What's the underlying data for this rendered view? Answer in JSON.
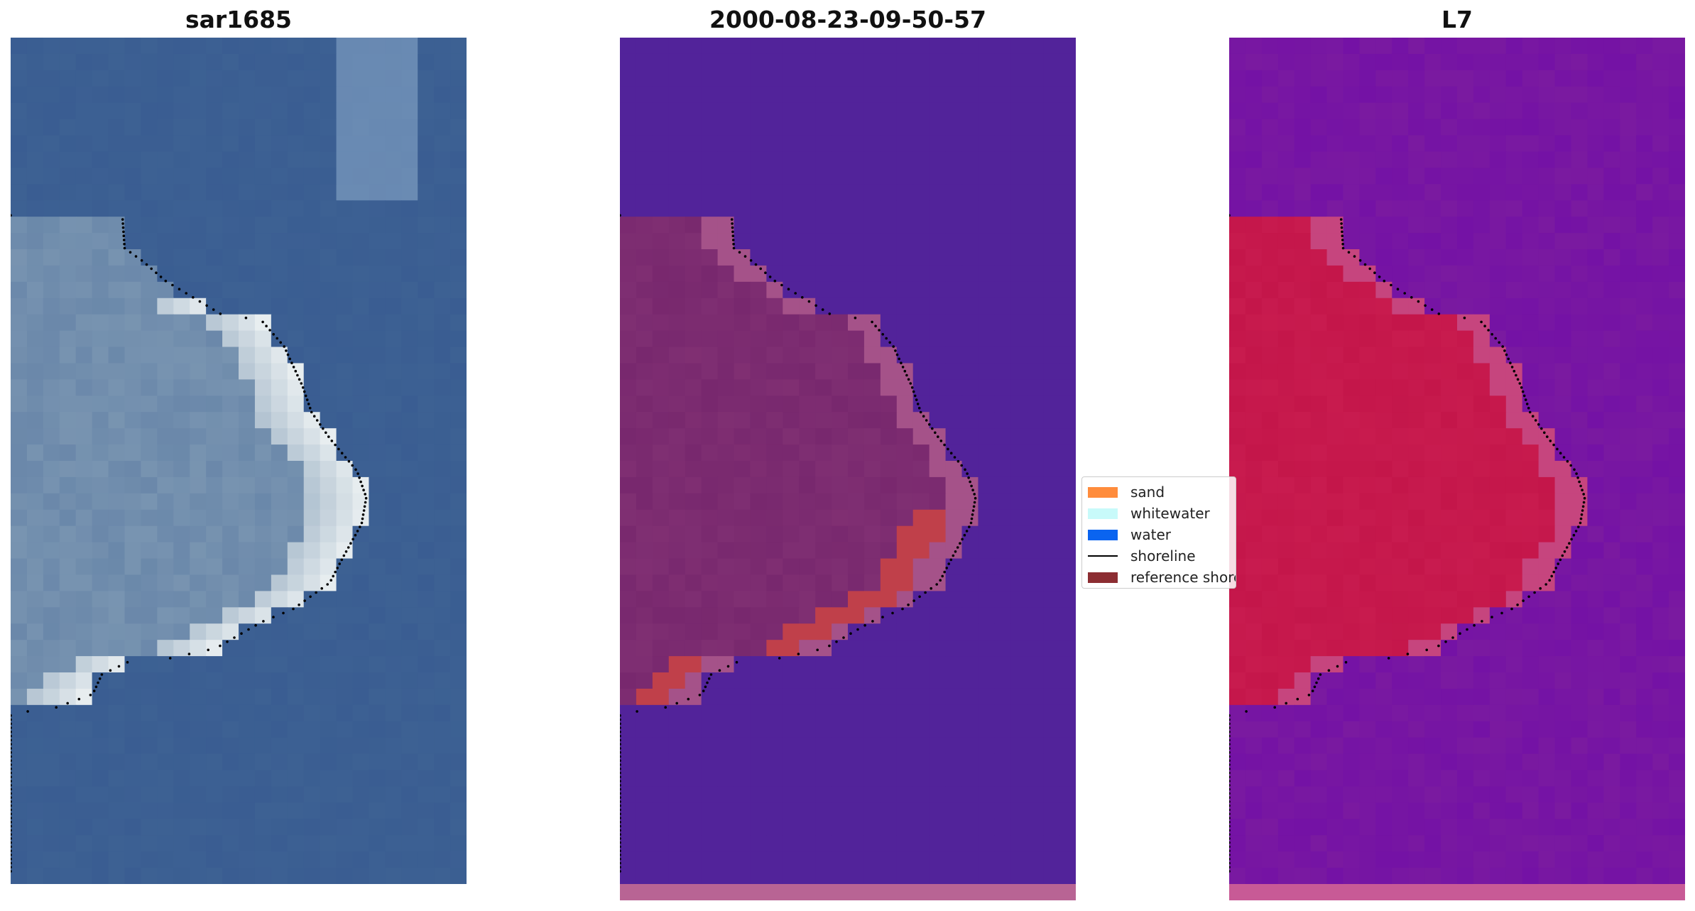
{
  "panels": [
    {
      "title": "sar1685",
      "kind": "rgb"
    },
    {
      "title": "2000-08-23-09-50-57",
      "kind": "classified"
    },
    {
      "title": "L7",
      "kind": "index"
    }
  ],
  "legend": {
    "placement": "center",
    "items": [
      {
        "label": "sand",
        "color": "#ff8c3c",
        "type": "patch"
      },
      {
        "label": "whitewater",
        "color": "#c8fafa",
        "type": "patch"
      },
      {
        "label": "water",
        "color": "#0a64f0",
        "type": "patch"
      },
      {
        "label": "shoreline",
        "color": "#000000",
        "type": "line"
      },
      {
        "label": "reference shoreline",
        "color": "#8c2d32",
        "type": "patch"
      }
    ]
  },
  "colors": {
    "sea_rgb": "#3a5d92",
    "land_rgb": "#7f9ab4",
    "beach_rgb": "#e8eef0",
    "class_water": "#52239a",
    "class_land": "#78286e",
    "class_sand": "#c0404a",
    "class_buffer": "#b86494",
    "index_water": "#7a1aa0",
    "index_land": "#c4164a"
  }
}
